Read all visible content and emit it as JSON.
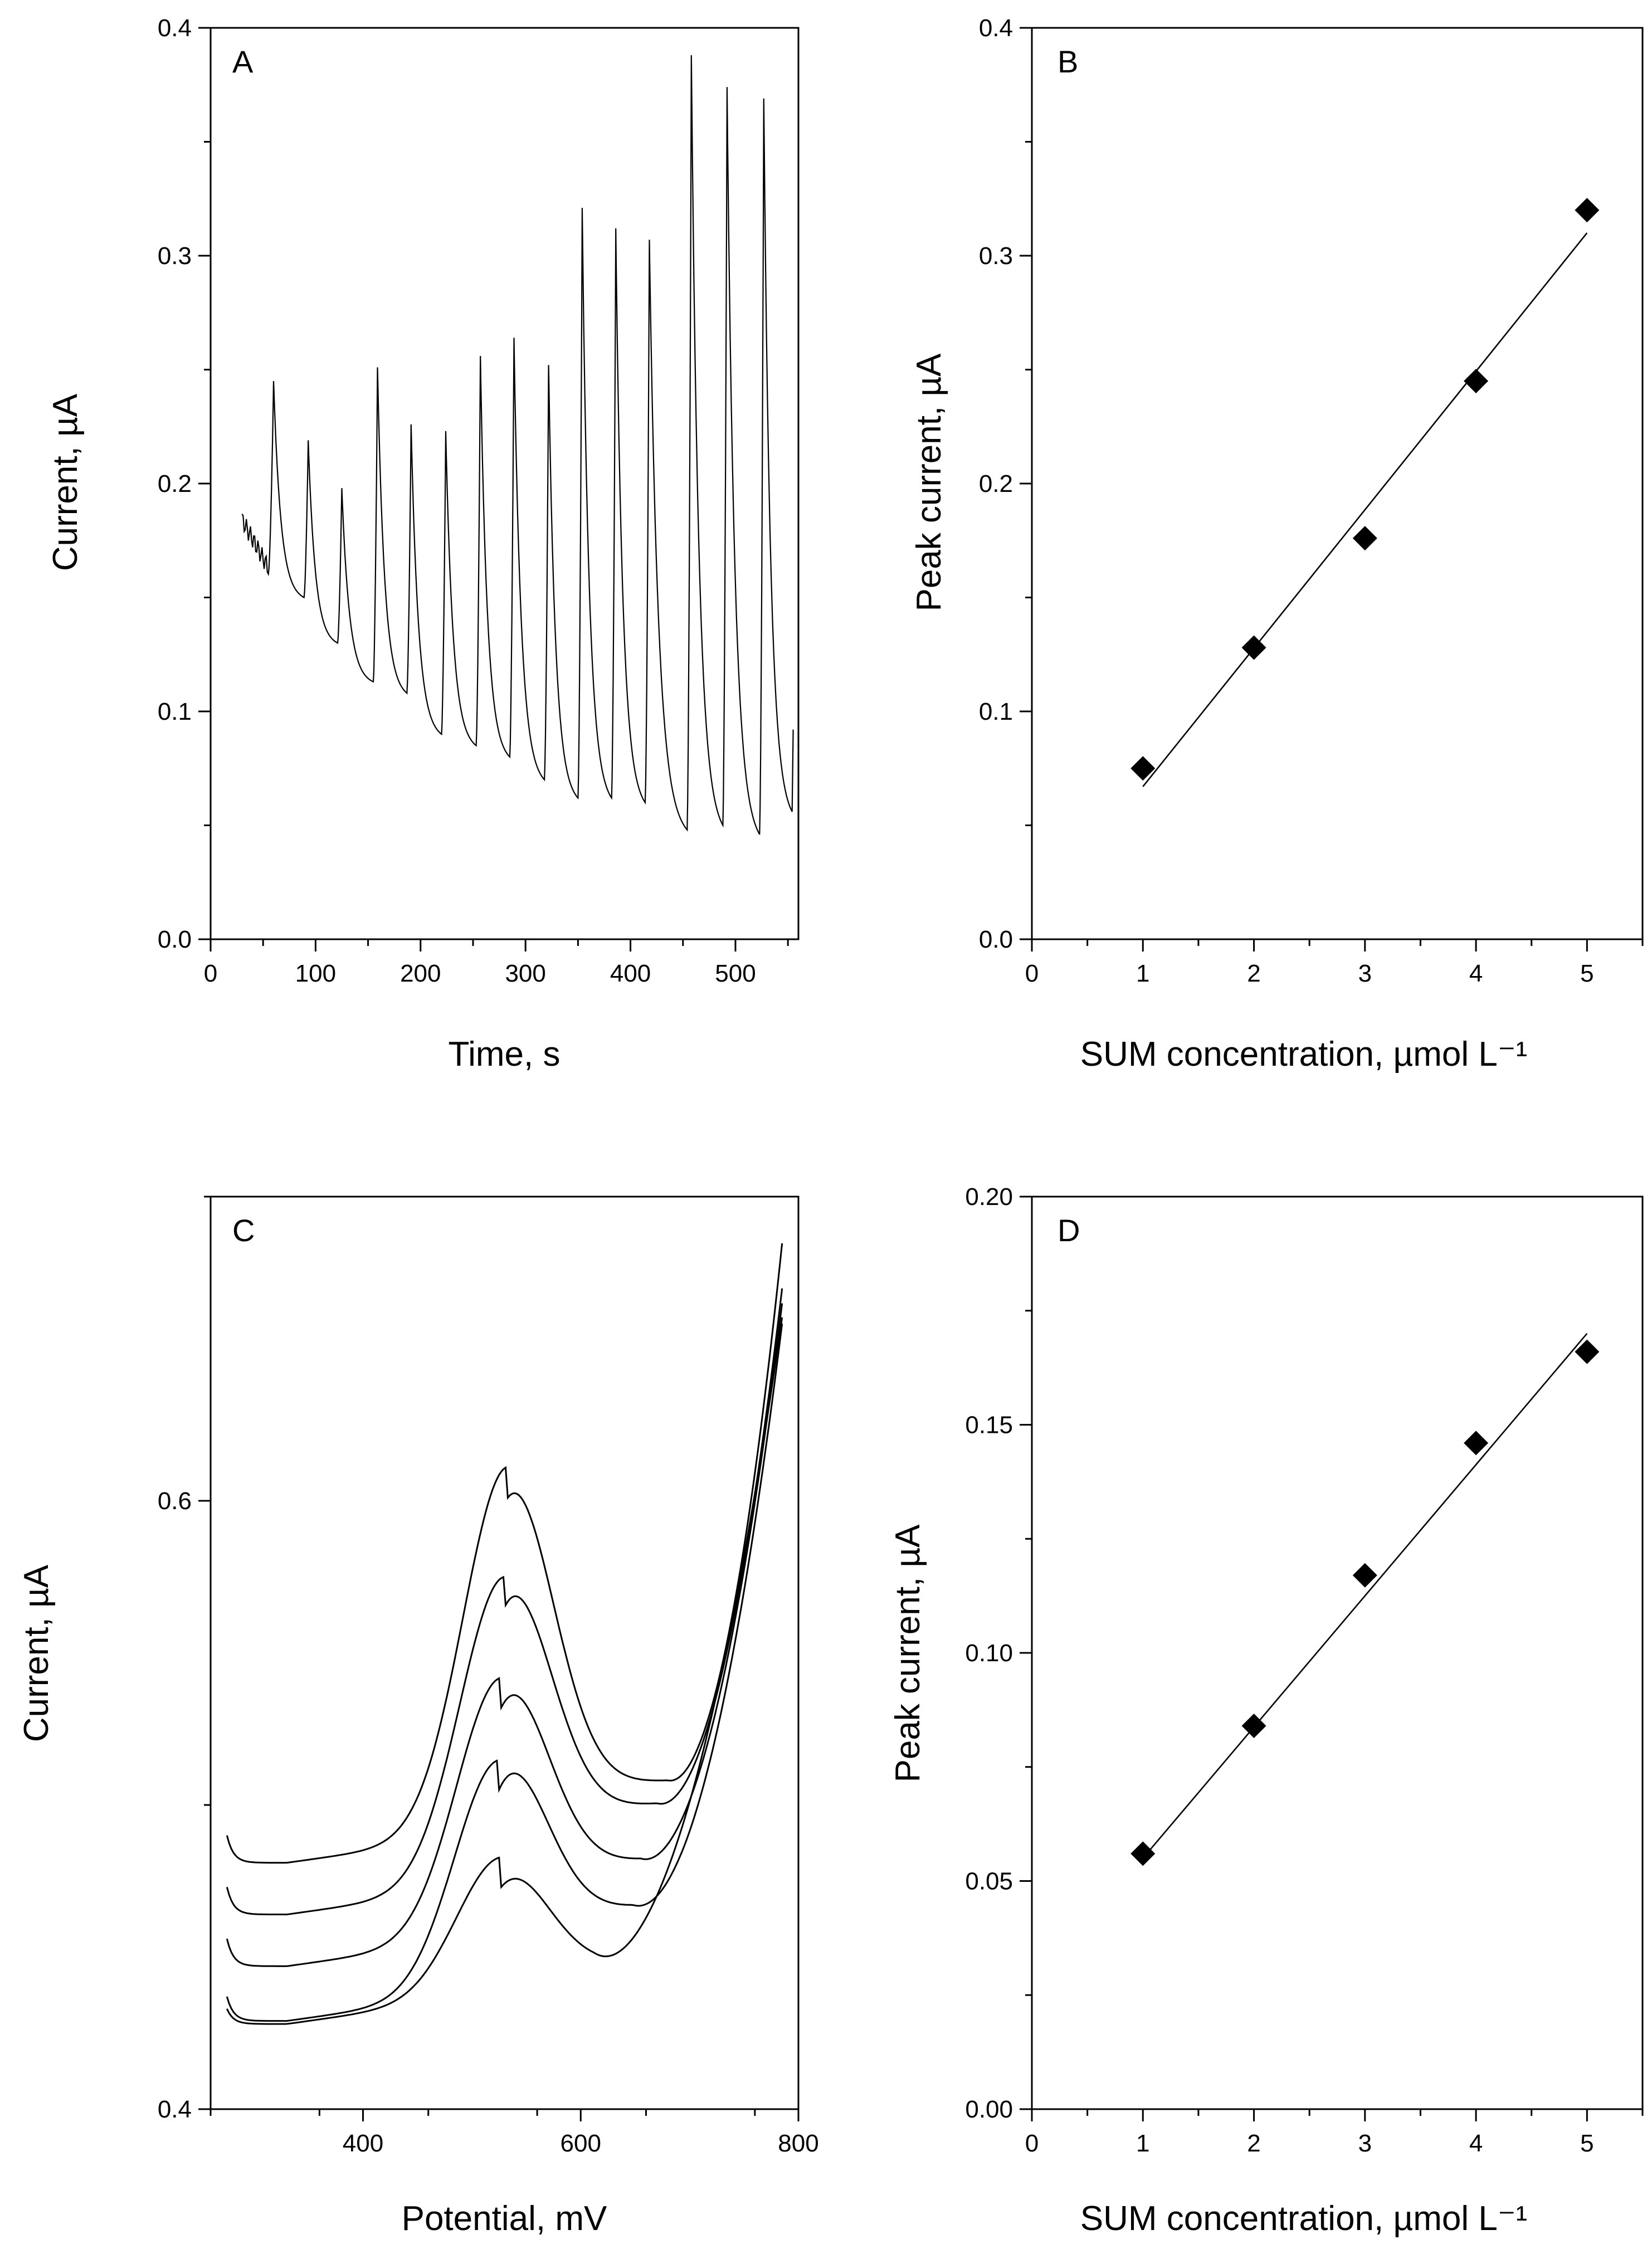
{
  "colors": {
    "line": "#000000",
    "marker": "#000000",
    "background": "#ffffff"
  },
  "chart_data": [
    {
      "id": "A",
      "panel_label": "A",
      "type": "line",
      "xlabel": "Time, s",
      "ylabel": "Current, µA",
      "xlim": [
        0,
        560
      ],
      "ylim": [
        0.0,
        0.4
      ],
      "xticks": [
        0,
        100,
        200,
        300,
        400,
        500
      ],
      "yticks": [
        0.0,
        0.1,
        0.2,
        0.3,
        0.4
      ],
      "xtick_labels": [
        "0",
        "100",
        "200",
        "300",
        "400",
        "500"
      ],
      "ytick_labels": [
        "0.0",
        "0.1",
        "0.2",
        "0.3",
        "0.4"
      ],
      "start": {
        "t": 30,
        "i": 0.184
      },
      "peaks": [
        {
          "t": 60,
          "peak": 0.245,
          "end": 0.15
        },
        {
          "t": 93,
          "peak": 0.219,
          "end": 0.13
        },
        {
          "t": 125,
          "peak": 0.198,
          "end": 0.113
        },
        {
          "t": 159,
          "peak": 0.251,
          "end": 0.108
        },
        {
          "t": 191,
          "peak": 0.226,
          "end": 0.09
        },
        {
          "t": 224,
          "peak": 0.223,
          "end": 0.085
        },
        {
          "t": 257,
          "peak": 0.256,
          "end": 0.08
        },
        {
          "t": 289,
          "peak": 0.264,
          "end": 0.07
        },
        {
          "t": 322,
          "peak": 0.252,
          "end": 0.062
        },
        {
          "t": 354,
          "peak": 0.321,
          "end": 0.062
        },
        {
          "t": 386,
          "peak": 0.312,
          "end": 0.06
        },
        {
          "t": 418,
          "peak": 0.307,
          "end": 0.048
        },
        {
          "t": 458,
          "peak": 0.388,
          "end": 0.05
        },
        {
          "t": 492,
          "peak": 0.374,
          "end": 0.046
        },
        {
          "t": 527,
          "peak": 0.369,
          "end": 0.056
        }
      ],
      "trace_end": {
        "t": 555,
        "i": 0.092
      }
    },
    {
      "id": "B",
      "panel_label": "B",
      "type": "scatter",
      "xlabel": "SUM concentration, µmol L⁻¹",
      "ylabel": "Peak current, µA",
      "xlim": [
        0,
        5.5
      ],
      "ylim": [
        0.0,
        0.4
      ],
      "xticks": [
        0,
        1,
        2,
        3,
        4,
        5
      ],
      "yticks": [
        0.0,
        0.1,
        0.2,
        0.3,
        0.4
      ],
      "xtick_labels": [
        "0",
        "1",
        "2",
        "3",
        "4",
        "5"
      ],
      "ytick_labels": [
        "0.0",
        "0.1",
        "0.2",
        "0.3",
        "0.4"
      ],
      "x": [
        1,
        2,
        3,
        4,
        5
      ],
      "y": [
        0.075,
        0.128,
        0.176,
        0.245,
        0.32
      ],
      "fit": {
        "x": [
          1,
          5
        ],
        "y": [
          0.067,
          0.31
        ]
      }
    },
    {
      "id": "C",
      "panel_label": "C",
      "type": "line",
      "xlabel": "Potential, mV",
      "ylabel": "Current, µA",
      "xlim": [
        260,
        800
      ],
      "ylim": [
        0.4,
        0.7
      ],
      "xticks": [
        400,
        600,
        800
      ],
      "yticks": [
        0.4,
        0.6
      ],
      "xtick_labels": [
        "400",
        "600",
        "800"
      ],
      "ytick_labels": [
        "0.4",
        "0.6"
      ],
      "x_start": 275,
      "x_end": 785,
      "series": [
        {
          "name": "curve-1",
          "baseline": 0.428,
          "peak_x": 527,
          "peak": 0.473,
          "valley_x": 612,
          "valley": 0.45,
          "end": 0.67,
          "start_spike": 0.433
        },
        {
          "name": "curve-2",
          "baseline": 0.429,
          "peak_x": 525,
          "peak": 0.505,
          "valley_x": 648,
          "valley": 0.469,
          "end": 0.673,
          "start_spike": 0.437
        },
        {
          "name": "curve-3",
          "baseline": 0.447,
          "peak_x": 527,
          "peak": 0.532,
          "valley_x": 655,
          "valley": 0.484,
          "end": 0.678,
          "start_spike": 0.456
        },
        {
          "name": "curve-4",
          "baseline": 0.464,
          "peak_x": 530,
          "peak": 0.565,
          "valley_x": 670,
          "valley": 0.502,
          "end": 0.682,
          "start_spike": 0.473
        },
        {
          "name": "curve-5",
          "baseline": 0.481,
          "peak_x": 533,
          "peak": 0.601,
          "valley_x": 680,
          "valley": 0.509,
          "end": 0.693,
          "start_spike": 0.49
        }
      ]
    },
    {
      "id": "D",
      "panel_label": "D",
      "type": "scatter",
      "xlabel": "SUM concentration, µmol L⁻¹",
      "ylabel": "Peak current, µA",
      "xlim": [
        0,
        5.5
      ],
      "ylim": [
        0.0,
        0.2
      ],
      "xticks": [
        0,
        1,
        2,
        3,
        4,
        5
      ],
      "yticks": [
        0.0,
        0.05,
        0.1,
        0.15,
        0.2
      ],
      "xtick_labels": [
        "0",
        "1",
        "2",
        "3",
        "4",
        "5"
      ],
      "ytick_labels": [
        "0.00",
        "0.05",
        "0.10",
        "0.15",
        "0.20"
      ],
      "x": [
        1,
        2,
        3,
        4,
        5
      ],
      "y": [
        0.056,
        0.084,
        0.117,
        0.146,
        0.166
      ],
      "fit": {
        "x": [
          1,
          5
        ],
        "y": [
          0.055,
          0.17
        ]
      }
    }
  ]
}
